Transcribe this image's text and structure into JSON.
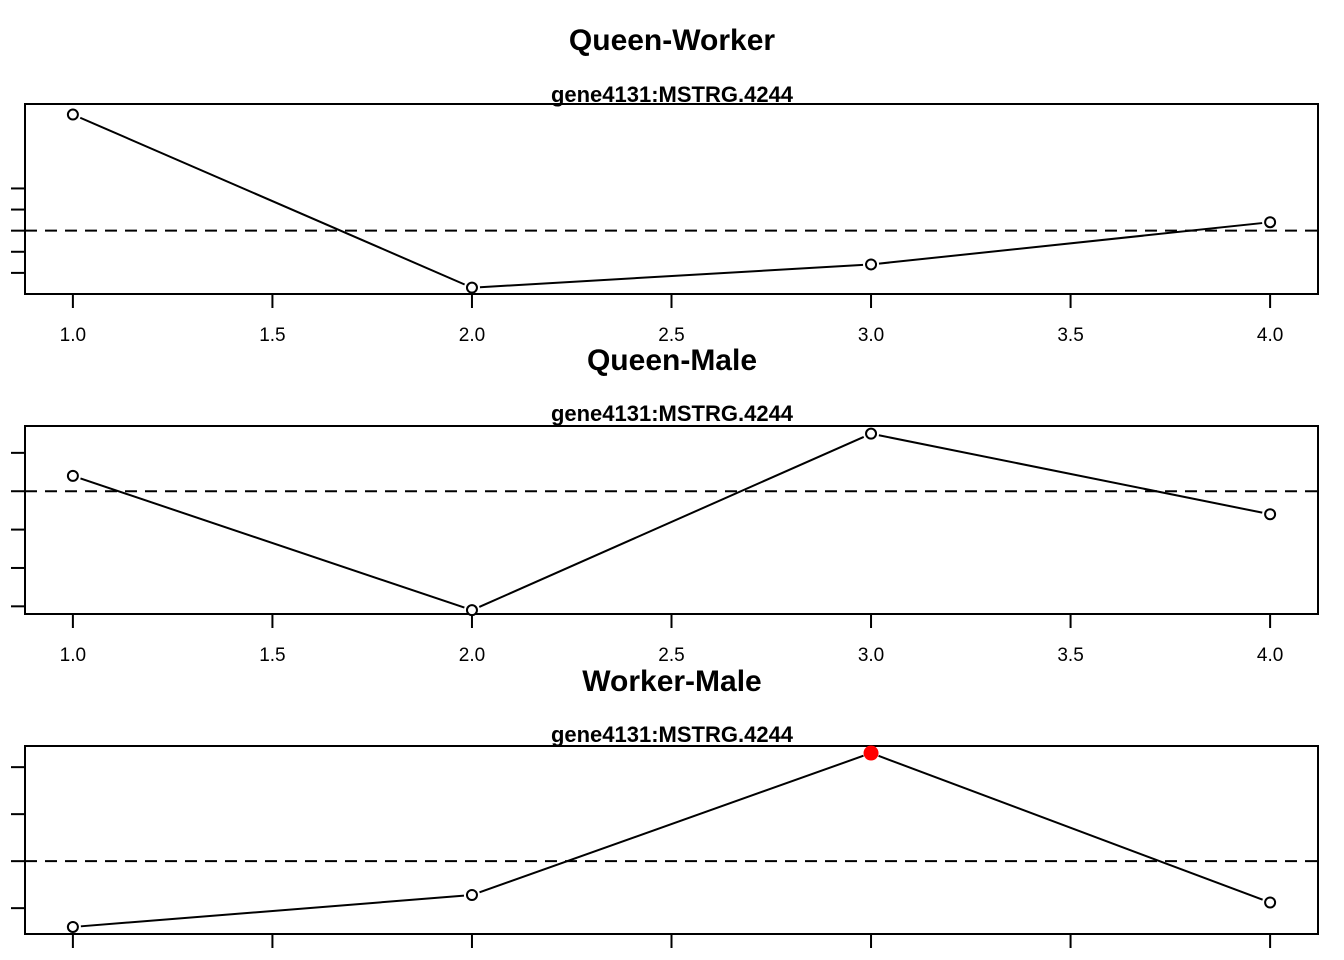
{
  "chart_data": [
    {
      "type": "line",
      "title": "Queen-Worker",
      "subtitle": "gene4131:MSTRG.4244",
      "x": [
        1,
        2,
        3,
        4
      ],
      "values": [
        2.75,
        -1.35,
        -0.8,
        0.2
      ],
      "xlim": [
        0.88,
        4.12
      ],
      "ylim": [
        -1.5,
        3.0
      ],
      "reference_y": 0,
      "x_ticks": [
        1.0,
        1.5,
        2.0,
        2.5,
        3.0,
        3.5,
        4.0
      ],
      "x_tick_labels": [
        "1.0",
        "1.5",
        "2.0",
        "2.5",
        "3.0",
        "3.5",
        "4.0"
      ],
      "y_ticks": [
        -1.0,
        -0.5,
        0.0,
        0.5,
        1.0
      ],
      "highlight_index": null,
      "highlight_color": "#ff0000",
      "grid": false,
      "legend": "none"
    },
    {
      "type": "line",
      "title": "Queen-Male",
      "subtitle": "gene4131:MSTRG.4244",
      "x": [
        1,
        2,
        3,
        4
      ],
      "values": [
        0.4,
        -3.1,
        1.5,
        -0.6
      ],
      "xlim": [
        0.88,
        4.12
      ],
      "ylim": [
        -3.2,
        1.7
      ],
      "reference_y": 0,
      "x_ticks": [
        1.0,
        1.5,
        2.0,
        2.5,
        3.0,
        3.5,
        4.0
      ],
      "x_tick_labels": [
        "1.0",
        "1.5",
        "2.0",
        "2.5",
        "3.0",
        "3.5",
        "4.0"
      ],
      "y_ticks": [
        -3,
        -2,
        -1,
        0,
        1
      ],
      "highlight_index": null,
      "highlight_color": "#ff0000",
      "grid": false,
      "legend": "none"
    },
    {
      "type": "line",
      "title": "Worker-Male",
      "subtitle": "gene4131:MSTRG.4244",
      "x": [
        1,
        2,
        3,
        4
      ],
      "values": [
        -1.4,
        -0.72,
        2.3,
        -0.88
      ],
      "xlim": [
        0.88,
        4.12
      ],
      "ylim": [
        -1.55,
        2.45
      ],
      "reference_y": 0,
      "x_ticks": [
        1.0,
        1.5,
        2.0,
        2.5,
        3.0,
        3.5,
        4.0
      ],
      "x_tick_labels": [],
      "y_ticks": [
        -1,
        0,
        1,
        2
      ],
      "highlight_index": 2,
      "highlight_color": "#ff0000",
      "grid": false,
      "legend": "none"
    }
  ]
}
